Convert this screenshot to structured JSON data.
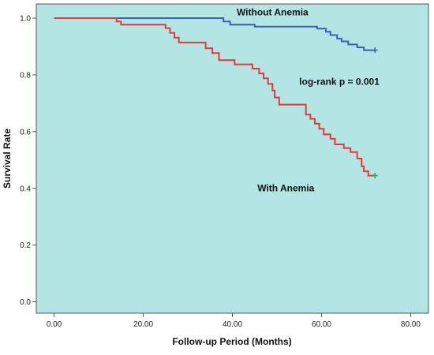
{
  "chart_data": {
    "type": "line",
    "title": "",
    "xlabel": "Follow-up Period (Months)",
    "ylabel": "Survival Rate",
    "xlim": [
      -4,
      84
    ],
    "ylim": [
      -0.04,
      1.05
    ],
    "x_ticks": [
      0,
      20,
      40,
      60,
      80
    ],
    "x_tick_labels": [
      "0.00",
      "20.00",
      "40.00",
      "60.00",
      "80.00"
    ],
    "y_ticks": [
      0.0,
      0.2,
      0.4,
      0.6,
      0.8,
      1.0
    ],
    "y_tick_labels": [
      "0.0",
      "0.2",
      "0.4",
      "0.6",
      "0.8",
      "1.0"
    ],
    "grid": false,
    "background_color": "#b2e5e3",
    "annotations": [
      {
        "text": "Without Anemia",
        "x": 49,
        "y": 1.01
      },
      {
        "text": "log-rank p = 0.001",
        "x": 64,
        "y": 0.765
      },
      {
        "text": "With Anemia",
        "x": 52,
        "y": 0.39
      }
    ],
    "series": [
      {
        "color": "#3c5fb8",
        "censor_color": "#3c5fb8",
        "points": [
          [
            0,
            1.0
          ],
          [
            38,
            1.0
          ],
          [
            38,
            0.988
          ],
          [
            39.5,
            0.988
          ],
          [
            39.5,
            0.977
          ],
          [
            45,
            0.977
          ],
          [
            45,
            0.97
          ],
          [
            59,
            0.97
          ],
          [
            59,
            0.963
          ],
          [
            61,
            0.963
          ],
          [
            61,
            0.952
          ],
          [
            62,
            0.952
          ],
          [
            62,
            0.94
          ],
          [
            63.5,
            0.94
          ],
          [
            63.5,
            0.928
          ],
          [
            64.5,
            0.928
          ],
          [
            64.5,
            0.918
          ],
          [
            66,
            0.918
          ],
          [
            66,
            0.907
          ],
          [
            68,
            0.907
          ],
          [
            68,
            0.897
          ],
          [
            69.5,
            0.897
          ],
          [
            69.5,
            0.887
          ],
          [
            72,
            0.887
          ]
        ],
        "censor": [
          [
            72,
            0.887
          ]
        ]
      },
      {
        "color": "#e53a3a",
        "censor_color": "#2aa64a",
        "points": [
          [
            0,
            1.0
          ],
          [
            14,
            1.0
          ],
          [
            14,
            0.988
          ],
          [
            15,
            0.988
          ],
          [
            15,
            0.977
          ],
          [
            25,
            0.977
          ],
          [
            25,
            0.965
          ],
          [
            26,
            0.965
          ],
          [
            26,
            0.948
          ],
          [
            27,
            0.948
          ],
          [
            27,
            0.931
          ],
          [
            28,
            0.931
          ],
          [
            28,
            0.914
          ],
          [
            34,
            0.914
          ],
          [
            34,
            0.894
          ],
          [
            35.5,
            0.894
          ],
          [
            35.5,
            0.877
          ],
          [
            37,
            0.877
          ],
          [
            37,
            0.852
          ],
          [
            40.5,
            0.852
          ],
          [
            40.5,
            0.837
          ],
          [
            44.5,
            0.837
          ],
          [
            44.5,
            0.822
          ],
          [
            46,
            0.822
          ],
          [
            46,
            0.805
          ],
          [
            47,
            0.805
          ],
          [
            47,
            0.788
          ],
          [
            48,
            0.788
          ],
          [
            48,
            0.768
          ],
          [
            49,
            0.768
          ],
          [
            49,
            0.745
          ],
          [
            49.5,
            0.745
          ],
          [
            49.5,
            0.72
          ],
          [
            50.5,
            0.72
          ],
          [
            50.5,
            0.695
          ],
          [
            56.5,
            0.695
          ],
          [
            56.5,
            0.66
          ],
          [
            57.5,
            0.66
          ],
          [
            57.5,
            0.645
          ],
          [
            58.5,
            0.645
          ],
          [
            58.5,
            0.628
          ],
          [
            59.5,
            0.628
          ],
          [
            59.5,
            0.61
          ],
          [
            60.5,
            0.61
          ],
          [
            60.5,
            0.59
          ],
          [
            62,
            0.59
          ],
          [
            62,
            0.575
          ],
          [
            63,
            0.575
          ],
          [
            63,
            0.555
          ],
          [
            65,
            0.555
          ],
          [
            65,
            0.542
          ],
          [
            66.5,
            0.542
          ],
          [
            66.5,
            0.528
          ],
          [
            68,
            0.528
          ],
          [
            68,
            0.505
          ],
          [
            69,
            0.505
          ],
          [
            69,
            0.478
          ],
          [
            69.5,
            0.478
          ],
          [
            69.5,
            0.46
          ],
          [
            70.5,
            0.46
          ],
          [
            70.5,
            0.445
          ],
          [
            72,
            0.445
          ]
        ],
        "censor": [
          [
            72,
            0.445
          ]
        ]
      }
    ]
  }
}
